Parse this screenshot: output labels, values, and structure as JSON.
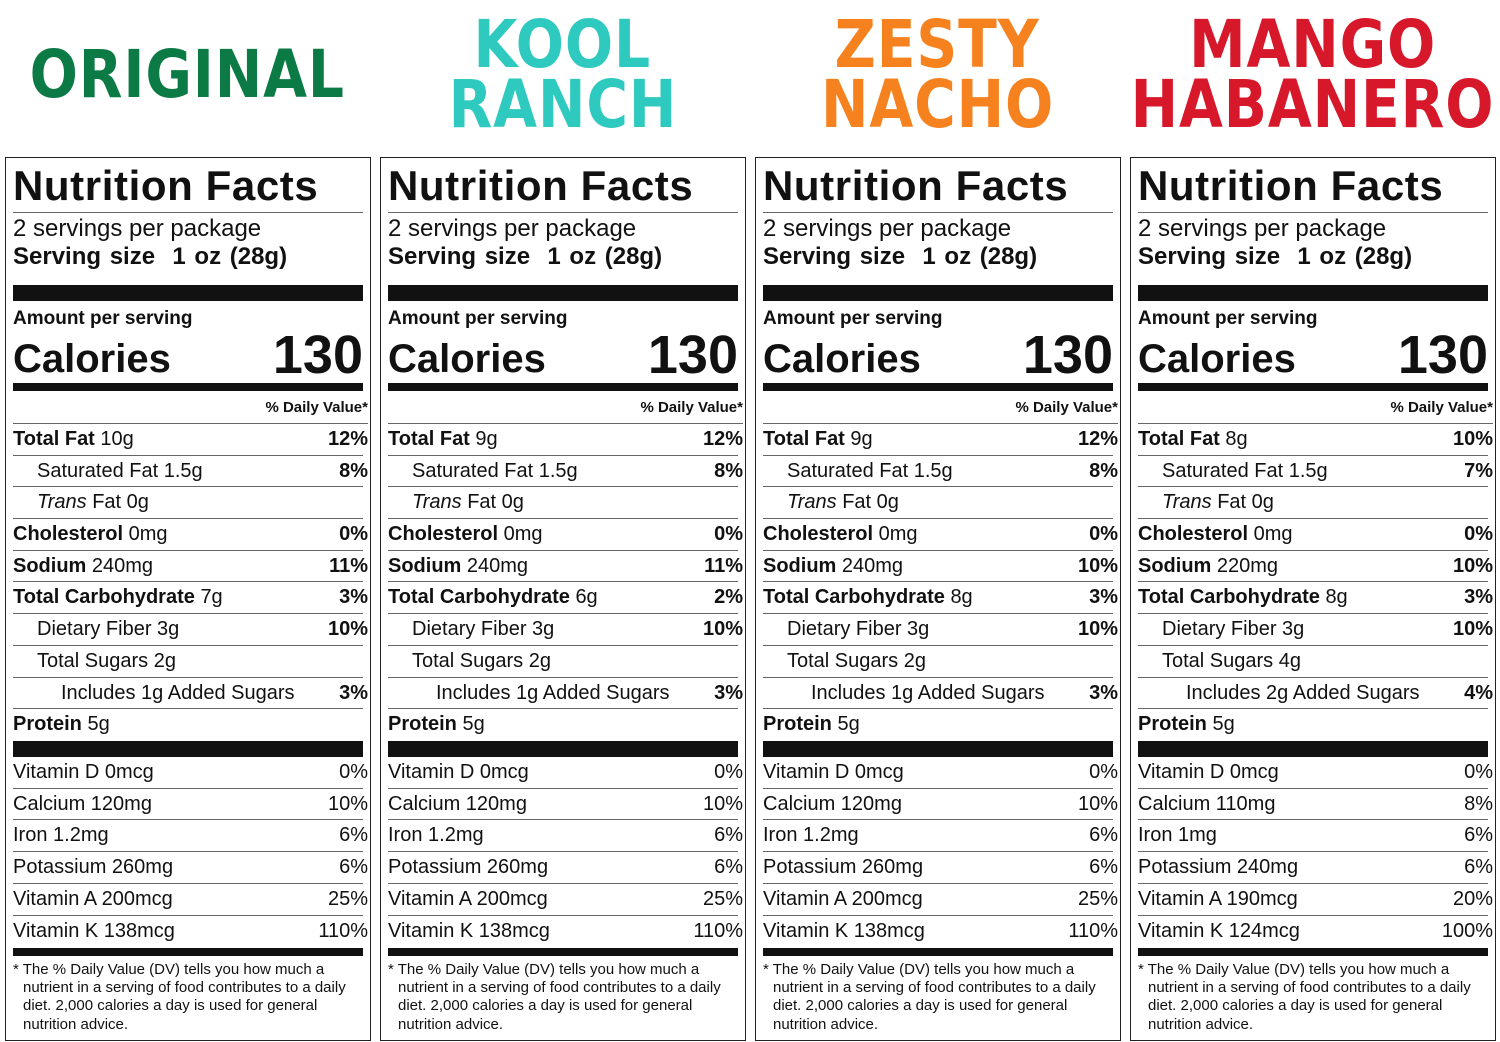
{
  "label": {
    "title": "Nutrition Facts",
    "amount_per_serving": "Amount per serving",
    "calories_label": "Calories",
    "daily_value_header": "% Daily Value*",
    "footnote": "* The % Daily Value (DV) tells you how much a nutrient in a serving of food contributes to a daily diet. 2,000 calories a day is used for general nutrition advice."
  },
  "products": [
    {
      "name_lines": [
        "ORIGINAL"
      ],
      "color": "#0b7a45",
      "servings": "2 servings per package",
      "serving_size": "Serving size  1 oz (28g)",
      "calories": "130",
      "nutrients": [
        {
          "label": "Total Fat",
          "amount": "10g",
          "dv": "12%",
          "bold": true,
          "indent": 0
        },
        {
          "label": "Saturated Fat",
          "amount": "1.5g",
          "dv": "8%",
          "indent": 1
        },
        {
          "italic": "Trans",
          "label": " Fat",
          "amount": "0g",
          "dv": "",
          "indent": 1
        },
        {
          "label": "Cholesterol",
          "amount": "0mg",
          "dv": "0%",
          "bold": true,
          "indent": 0
        },
        {
          "label": "Sodium",
          "amount": "240mg",
          "dv": "11%",
          "bold": true,
          "indent": 0
        },
        {
          "label": "Total Carbohydrate",
          "amount": "7g",
          "dv": "3%",
          "bold": true,
          "indent": 0
        },
        {
          "label": "Dietary Fiber",
          "amount": "3g",
          "dv": "10%",
          "indent": 1
        },
        {
          "label": "Total Sugars",
          "amount": "2g",
          "dv": "",
          "indent": 1
        },
        {
          "label": "Includes 1g Added Sugars",
          "amount": "",
          "dv": "3%",
          "indent": 2
        },
        {
          "label": "Protein",
          "amount": "5g",
          "dv": "",
          "bold": true,
          "indent": 0
        }
      ],
      "vitamins": [
        {
          "label": "Vitamin D 0mcg",
          "dv": "0%"
        },
        {
          "label": "Calcium 120mg",
          "dv": "10%"
        },
        {
          "label": "Iron 1.2mg",
          "dv": "6%"
        },
        {
          "label": "Potassium 260mg",
          "dv": "6%"
        },
        {
          "label": "Vitamin A 200mcg",
          "dv": "25%"
        },
        {
          "label": "Vitamin K 138mcg",
          "dv": "110%"
        }
      ]
    },
    {
      "name_lines": [
        "KOOL",
        "RANCH"
      ],
      "color": "#2ec9bf",
      "servings": "2 servings per package",
      "serving_size": "Serving size  1 oz (28g)",
      "calories": "130",
      "nutrients": [
        {
          "label": "Total Fat",
          "amount": "9g",
          "dv": "12%",
          "bold": true,
          "indent": 0
        },
        {
          "label": "Saturated Fat",
          "amount": "1.5g",
          "dv": "8%",
          "indent": 1
        },
        {
          "italic": "Trans",
          "label": " Fat",
          "amount": "0g",
          "dv": "",
          "indent": 1
        },
        {
          "label": "Cholesterol",
          "amount": "0mg",
          "dv": "0%",
          "bold": true,
          "indent": 0
        },
        {
          "label": "Sodium",
          "amount": "240mg",
          "dv": "11%",
          "bold": true,
          "indent": 0
        },
        {
          "label": "Total Carbohydrate",
          "amount": "6g",
          "dv": "2%",
          "bold": true,
          "indent": 0
        },
        {
          "label": "Dietary Fiber",
          "amount": "3g",
          "dv": "10%",
          "indent": 1
        },
        {
          "label": "Total Sugars",
          "amount": "2g",
          "dv": "",
          "indent": 1
        },
        {
          "label": "Includes 1g Added Sugars",
          "amount": "",
          "dv": "3%",
          "indent": 2
        },
        {
          "label": "Protein",
          "amount": "5g",
          "dv": "",
          "bold": true,
          "indent": 0
        }
      ],
      "vitamins": [
        {
          "label": "Vitamin D 0mcg",
          "dv": "0%"
        },
        {
          "label": "Calcium 120mg",
          "dv": "10%"
        },
        {
          "label": "Iron 1.2mg",
          "dv": "6%"
        },
        {
          "label": "Potassium 260mg",
          "dv": "6%"
        },
        {
          "label": "Vitamin A 200mcg",
          "dv": "25%"
        },
        {
          "label": "Vitamin K 138mcg",
          "dv": "110%"
        }
      ]
    },
    {
      "name_lines": [
        "ZESTY",
        "NACHO"
      ],
      "color": "#f5821f",
      "servings": "2 servings per package",
      "serving_size": "Serving size  1 oz (28g)",
      "calories": "130",
      "nutrients": [
        {
          "label": "Total Fat",
          "amount": "9g",
          "dv": "12%",
          "bold": true,
          "indent": 0
        },
        {
          "label": "Saturated Fat",
          "amount": "1.5g",
          "dv": "8%",
          "indent": 1
        },
        {
          "italic": "Trans",
          "label": " Fat",
          "amount": "0g",
          "dv": "",
          "indent": 1
        },
        {
          "label": "Cholesterol",
          "amount": "0mg",
          "dv": "0%",
          "bold": true,
          "indent": 0
        },
        {
          "label": "Sodium",
          "amount": "240mg",
          "dv": "10%",
          "bold": true,
          "indent": 0
        },
        {
          "label": "Total Carbohydrate",
          "amount": "8g",
          "dv": "3%",
          "bold": true,
          "indent": 0
        },
        {
          "label": "Dietary Fiber",
          "amount": "3g",
          "dv": "10%",
          "indent": 1
        },
        {
          "label": "Total Sugars",
          "amount": "2g",
          "dv": "",
          "indent": 1
        },
        {
          "label": "Includes 1g Added Sugars",
          "amount": "",
          "dv": "3%",
          "indent": 2
        },
        {
          "label": "Protein",
          "amount": "5g",
          "dv": "",
          "bold": true,
          "indent": 0
        }
      ],
      "vitamins": [
        {
          "label": "Vitamin D 0mcg",
          "dv": "0%"
        },
        {
          "label": "Calcium 120mg",
          "dv": "10%"
        },
        {
          "label": "Iron 1.2mg",
          "dv": "6%"
        },
        {
          "label": "Potassium 260mg",
          "dv": "6%"
        },
        {
          "label": "Vitamin A 200mcg",
          "dv": "25%"
        },
        {
          "label": "Vitamin K 138mcg",
          "dv": "110%"
        }
      ]
    },
    {
      "name_lines": [
        "MANGO",
        "HABANERO"
      ],
      "color": "#d7182a",
      "servings": "2 servings per package",
      "serving_size": "Serving size  1 oz (28g)",
      "calories": "130",
      "nutrients": [
        {
          "label": "Total Fat",
          "amount": "8g",
          "dv": "10%",
          "bold": true,
          "indent": 0
        },
        {
          "label": "Saturated Fat",
          "amount": "1.5g",
          "dv": "7%",
          "indent": 1
        },
        {
          "italic": "Trans",
          "label": " Fat",
          "amount": "0g",
          "dv": "",
          "indent": 1
        },
        {
          "label": "Cholesterol",
          "amount": "0mg",
          "dv": "0%",
          "bold": true,
          "indent": 0
        },
        {
          "label": "Sodium",
          "amount": "220mg",
          "dv": "10%",
          "bold": true,
          "indent": 0
        },
        {
          "label": "Total Carbohydrate",
          "amount": "8g",
          "dv": "3%",
          "bold": true,
          "indent": 0
        },
        {
          "label": "Dietary Fiber",
          "amount": "3g",
          "dv": "10%",
          "indent": 1
        },
        {
          "label": "Total Sugars",
          "amount": "4g",
          "dv": "",
          "indent": 1
        },
        {
          "label": "Includes 2g Added Sugars",
          "amount": "",
          "dv": "4%",
          "indent": 2
        },
        {
          "label": "Protein",
          "amount": "5g",
          "dv": "",
          "bold": true,
          "indent": 0
        }
      ],
      "vitamins": [
        {
          "label": "Vitamin D 0mcg",
          "dv": "0%"
        },
        {
          "label": "Calcium 110mg",
          "dv": "8%"
        },
        {
          "label": "Iron 1mg",
          "dv": "6%"
        },
        {
          "label": "Potassium 240mg",
          "dv": "6%"
        },
        {
          "label": "Vitamin A 190mcg",
          "dv": "20%"
        },
        {
          "label": "Vitamin K 124mcg",
          "dv": "100%"
        }
      ]
    }
  ]
}
